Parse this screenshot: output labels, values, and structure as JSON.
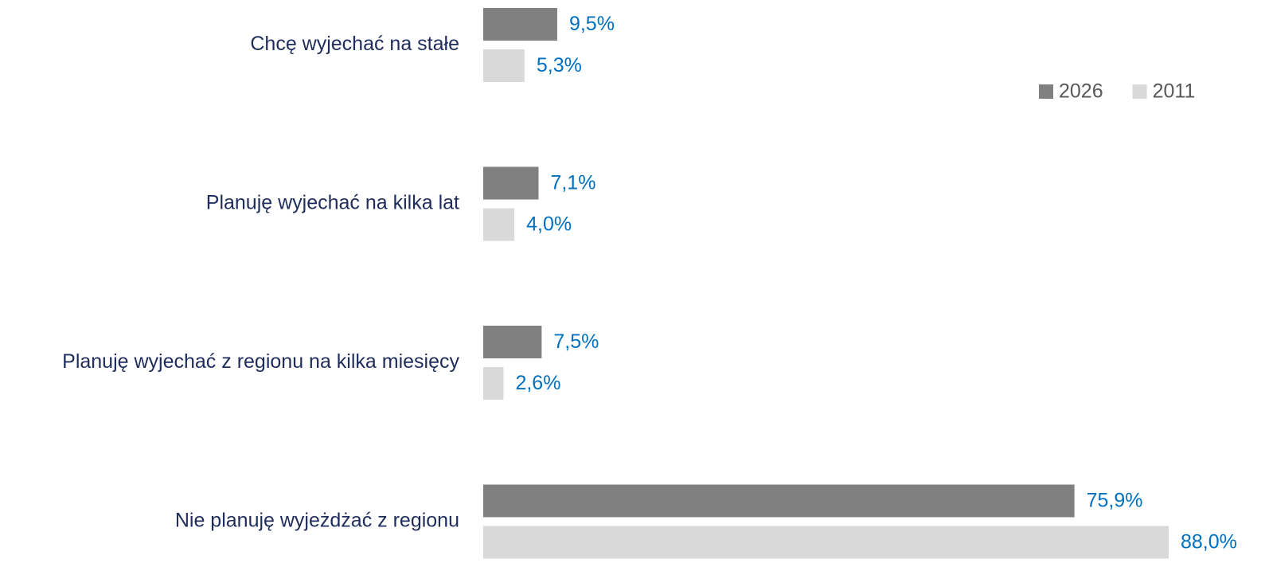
{
  "chart_data": {
    "type": "bar",
    "orientation": "horizontal",
    "categories": [
      "Chcę wyjechać na stałe",
      "Planuję wyjechać na kilka lat",
      "Planuję wyjechać z regionu na kilka miesięcy",
      "Nie planuję wyjeżdżać z regionu"
    ],
    "series": [
      {
        "name": "2026",
        "color": "#808080",
        "values": [
          9.5,
          7.1,
          7.5,
          75.9
        ],
        "value_labels": [
          "9,5%",
          "7,1%",
          "7,5%",
          "75,9%"
        ]
      },
      {
        "name": "2011",
        "color": "#d9d9d9",
        "values": [
          5.3,
          4.0,
          2.6,
          88.0
        ],
        "value_labels": [
          "5,3%",
          "4,0%",
          "2,6%",
          "88,0%"
        ]
      }
    ],
    "legend": "top-right",
    "grid": false
  }
}
